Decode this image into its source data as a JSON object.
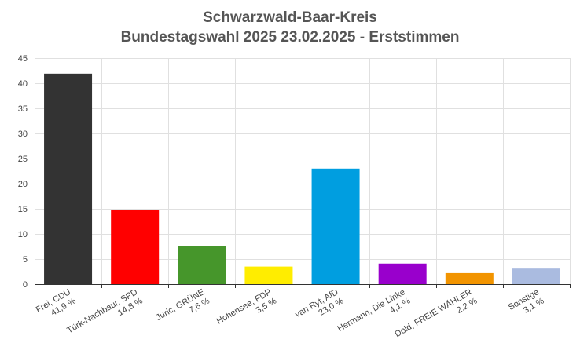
{
  "chart_data": {
    "type": "bar",
    "title": "Schwarzwald-Baar-Kreis",
    "subtitle": "Bundestagswahl 2025 23.02.2025  - Erststimmen",
    "xlabel": "",
    "ylabel": "",
    "ylim": [
      0,
      45
    ],
    "yticks": [
      0,
      5,
      10,
      15,
      20,
      25,
      30,
      35,
      40,
      45
    ],
    "grid": true,
    "legend": "none",
    "categories": [
      {
        "name": "Frei, CDU",
        "pct": "41,9 %",
        "value": 41.9,
        "color": "#333333"
      },
      {
        "name": "Türk-Nachbaur, SPD",
        "pct": "14,8 %",
        "value": 14.8,
        "color": "#ff0000"
      },
      {
        "name": "Juric, GRÜNE",
        "pct": "7,6 %",
        "value": 7.6,
        "color": "#46962b"
      },
      {
        "name": "Hohensee, FDP",
        "pct": "3,5 %",
        "value": 3.5,
        "color": "#ffed00"
      },
      {
        "name": "van Ryt, AfD",
        "pct": "23,0 %",
        "value": 23.0,
        "color": "#009ee0"
      },
      {
        "name": "Hermann, Die Linke",
        "pct": "4,1 %",
        "value": 4.1,
        "color": "#9900cc"
      },
      {
        "name": "Dold, FREIE WÄHLER",
        "pct": "2,2 %",
        "value": 2.2,
        "color": "#f29400"
      },
      {
        "name": "Sonstige",
        "pct": "3,1 %",
        "value": 3.1,
        "color": "#aabbe0"
      }
    ]
  }
}
